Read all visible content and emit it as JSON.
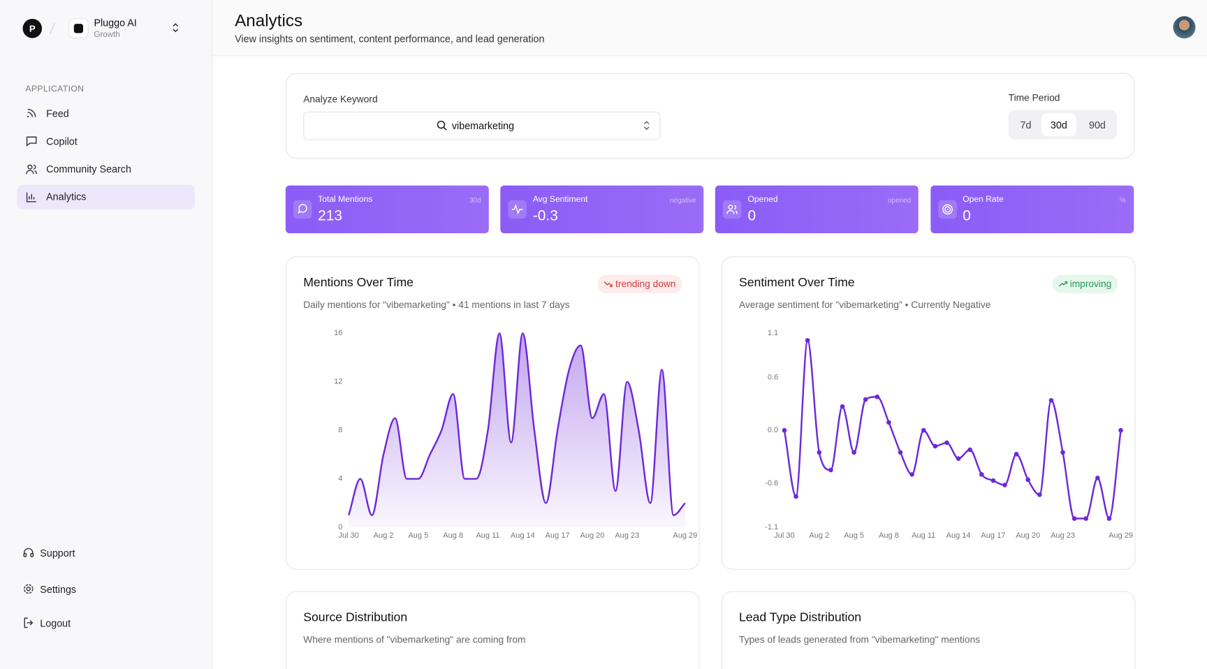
{
  "sidebar": {
    "brand": "Pluggo AI",
    "plan": "Growth",
    "section": "APPLICATION",
    "nav": [
      "Feed",
      "Copilot",
      "Community Search",
      "Analytics"
    ],
    "active_nav": "Analytics",
    "footer": [
      "Support",
      "Settings",
      "Logout"
    ]
  },
  "header": {
    "title": "Analytics",
    "subtitle": "View insights on sentiment, content performance, and lead generation"
  },
  "filters": {
    "keyword_label": "Analyze Keyword",
    "keyword": "vibemarketing",
    "period_label": "Time Period",
    "periods": [
      "7d",
      "30d",
      "90d"
    ],
    "active_period": "30d"
  },
  "stats": [
    {
      "label": "Total Mentions",
      "tag": "30d",
      "value": 213
    },
    {
      "label": "Avg Sentiment",
      "tag": "negative",
      "value": -0.3
    },
    {
      "label": "Opened",
      "tag": "opened",
      "value": 0
    },
    {
      "label": "Open Rate",
      "tag": "%",
      "value": 0
    }
  ],
  "chart_data": [
    {
      "type": "area",
      "title": "Mentions Over Time",
      "badge": "trending down",
      "subtitle": "Daily mentions for \"vibemarketing\" • 41 mentions in last 7 days",
      "categories": [
        "Jul 30",
        null,
        null,
        "Aug 2",
        null,
        null,
        "Aug 5",
        null,
        null,
        "Aug 8",
        null,
        null,
        "Aug 11",
        null,
        null,
        "Aug 14",
        null,
        null,
        "Aug 17",
        null,
        null,
        "Aug 20",
        null,
        null,
        "Aug 23",
        null,
        null,
        null,
        null,
        "Aug 29"
      ],
      "values": [
        1,
        4,
        1,
        6,
        9,
        4,
        4,
        6,
        8,
        11,
        4,
        4,
        8,
        16,
        7,
        16,
        8,
        2,
        8,
        13,
        15,
        9,
        11,
        3,
        12,
        8,
        2,
        13,
        1,
        2
      ],
      "color": "#6d28d9",
      "ylim": [
        0,
        16
      ],
      "yticks": [
        0,
        4,
        8,
        12,
        16
      ]
    },
    {
      "type": "line",
      "title": "Sentiment Over Time",
      "badge": "improving",
      "subtitle": "Average sentiment for \"vibemarketing\" • Currently Negative",
      "categories": [
        "Jul 30",
        null,
        null,
        "Aug 2",
        null,
        null,
        "Aug 5",
        null,
        null,
        "Aug 8",
        null,
        null,
        "Aug 11",
        null,
        null,
        "Aug 14",
        null,
        null,
        "Aug 17",
        null,
        null,
        "Aug 20",
        null,
        null,
        "Aug 23",
        null,
        null,
        null,
        null,
        "Aug 29"
      ],
      "values": [
        0,
        -0.75,
        1.02,
        -0.25,
        -0.45,
        0.27,
        -0.25,
        0.35,
        0.38,
        0.09,
        -0.25,
        -0.5,
        0,
        -0.18,
        -0.14,
        -0.32,
        -0.22,
        -0.5,
        -0.57,
        -0.62,
        -0.27,
        -0.56,
        -0.73,
        0.34,
        -0.25,
        -1.0,
        -1.0,
        -0.54,
        -1.0,
        0
      ],
      "color": "#6d28d9",
      "ylim": [
        -1.1,
        1.1
      ],
      "yticks": [
        -1.1,
        -0.6,
        {
          "value": 0,
          "label": "0.0"
        },
        0.6,
        1.1
      ]
    }
  ],
  "cards": [
    {
      "title": "Source Distribution",
      "subtitle": "Where mentions of \"vibemarketing\" are coming from"
    },
    {
      "title": "Lead Type Distribution",
      "subtitle": "Types of leads generated from \"vibemarketing\" mentions"
    }
  ]
}
